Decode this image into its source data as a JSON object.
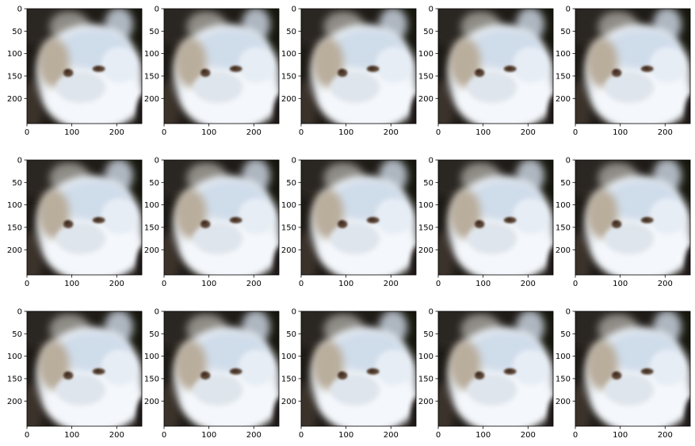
{
  "figure": {
    "rows": 3,
    "cols": 5
  },
  "chart_data": {
    "type": "image-grid",
    "panel_count": 15,
    "image_content": "blurry reconstruction of a white fluffy cat face on dark background",
    "title": "",
    "xlabel": "",
    "ylabel": "",
    "xlim": [
      0,
      256
    ],
    "ylim": [
      256,
      0
    ],
    "xticks": [
      0,
      100,
      200
    ],
    "yticks": [
      0,
      50,
      100,
      150,
      200
    ],
    "grid": false,
    "colors": {
      "background_dark": "#1f1b17",
      "fur_light": "#eef3f8",
      "fur_blue_tint": "#c9dcee",
      "fur_warm_tint": "#b7aa98",
      "eye": "#5a4436",
      "axis": "#000000"
    }
  }
}
